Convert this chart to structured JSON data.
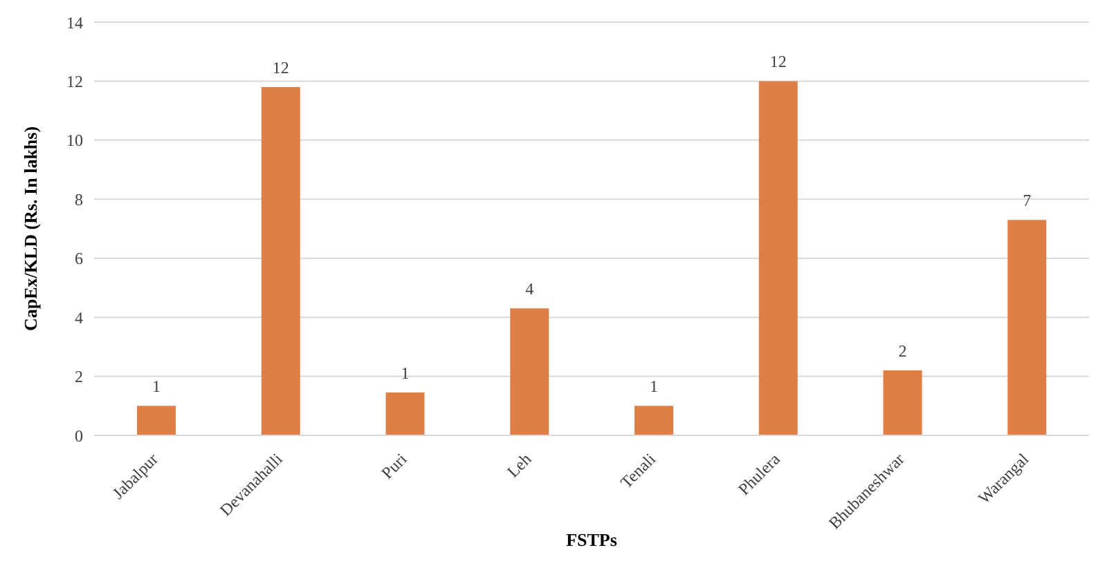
{
  "chart_data": {
    "type": "bar",
    "xlabel": "FSTPs",
    "ylabel": "CapEx/KLD (Rs. In lakhs)",
    "categories": [
      "Jabalpur",
      "Devanahalli",
      "Puri",
      "Leh",
      "Tenali",
      "Phulera",
      "Bhubaneshwar",
      "Warangal"
    ],
    "values": [
      1.0,
      11.8,
      1.45,
      4.3,
      1.0,
      12.0,
      2.2,
      7.3
    ],
    "value_labels": [
      "1",
      "12",
      "1",
      "4",
      "1",
      "12",
      "2",
      "7"
    ],
    "color": "#e07f45",
    "ylim": [
      0,
      14
    ],
    "yticks": [
      0,
      2,
      4,
      6,
      8,
      10,
      12,
      14
    ],
    "grid": "y"
  }
}
